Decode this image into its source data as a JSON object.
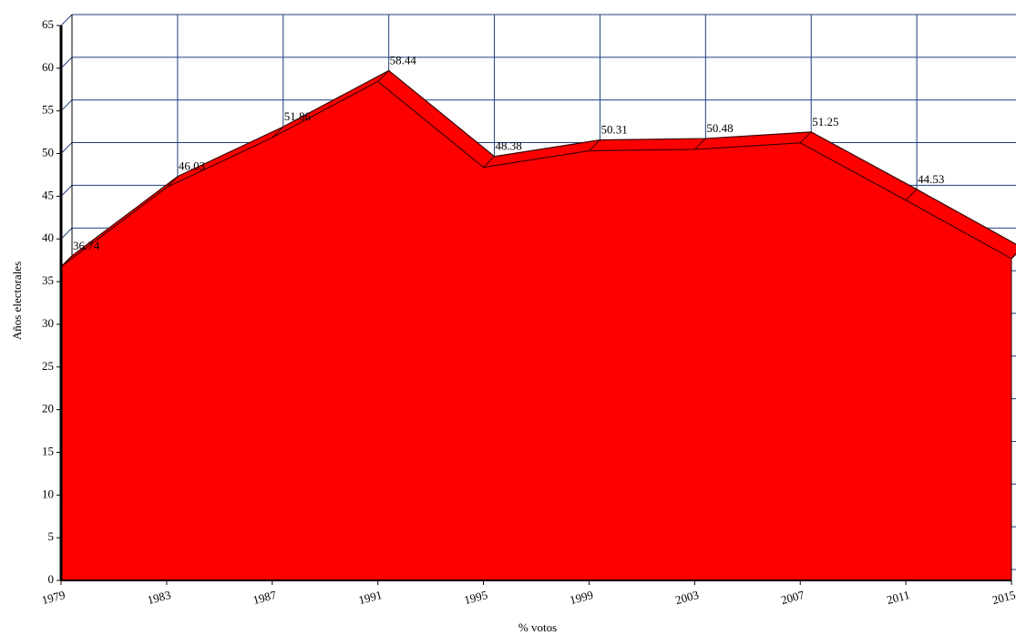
{
  "chart_data": {
    "type": "area",
    "x_label": "% votos",
    "y_label": "Años electorales",
    "categories": [
      "1979",
      "1983",
      "1987",
      "1991",
      "1995",
      "1999",
      "2003",
      "2007",
      "2011",
      "2015"
    ],
    "values": [
      36.74,
      46.03,
      51.86,
      58.44,
      48.38,
      50.31,
      50.48,
      51.25,
      44.53,
      37.69
    ],
    "color": "#ff0000",
    "ylim": [
      0,
      65
    ],
    "yticks": [
      0,
      5,
      10,
      15,
      20,
      25,
      30,
      35,
      40,
      45,
      50,
      55,
      60,
      65
    ],
    "grid": true
  }
}
